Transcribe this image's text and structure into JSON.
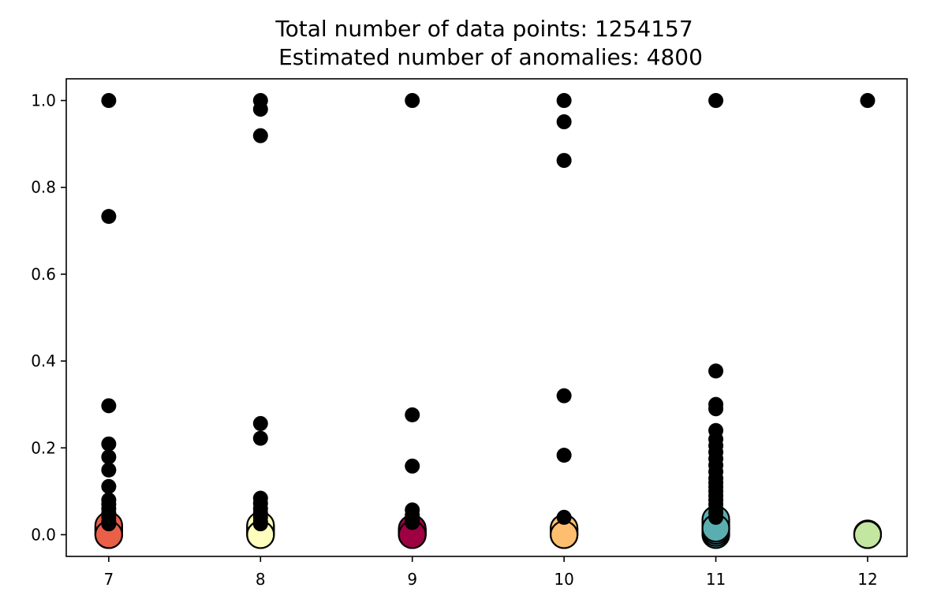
{
  "chart_data": {
    "type": "scatter",
    "title_line1": "Total number of data points: 1254157",
    "title_line2": "Estimated number of anomalies: 4800",
    "xlabel": "",
    "ylabel": "",
    "xlim": [
      6.72,
      12.26
    ],
    "ylim": [
      -0.05,
      1.05
    ],
    "grid": false,
    "x_ticks": [
      7,
      8,
      9,
      10,
      11,
      12
    ],
    "x_tick_labels": [
      "7",
      "8",
      "9",
      "10",
      "11",
      "12"
    ],
    "y_ticks": [
      0.0,
      0.2,
      0.4,
      0.6,
      0.8,
      1.0
    ],
    "y_tick_labels": [
      "0.0",
      "0.2",
      "0.4",
      "0.6",
      "0.8",
      "1.0"
    ],
    "clusters": [
      {
        "x": 7,
        "color": "#e95f47",
        "center_y": 0.0,
        "core_y": [
          0.0,
          0.003,
          0.006,
          0.009,
          0.012,
          0.015,
          0.018,
          0.021
        ]
      },
      {
        "x": 8,
        "color": "#fefebd",
        "center_y": 0.0,
        "core_y": [
          0.0,
          0.003,
          0.006,
          0.009,
          0.012,
          0.015,
          0.018,
          0.021
        ]
      },
      {
        "x": 9,
        "color": "#9e0142",
        "center_y": 0.0,
        "core_y": [
          0.0,
          0.002,
          0.004,
          0.006,
          0.008,
          0.01,
          0.012,
          0.014
        ]
      },
      {
        "x": 10,
        "color": "#fdbf6f",
        "center_y": 0.0,
        "core_y": [
          0.0,
          0.003,
          0.006,
          0.009,
          0.012,
          0.015
        ]
      },
      {
        "x": 11,
        "color": "#5aaeb0",
        "center_y": 0.015,
        "core_y": [
          0.0,
          0.005,
          0.01,
          0.015,
          0.02,
          0.025,
          0.03,
          0.035
        ]
      },
      {
        "x": 12,
        "color": "#c3e6a0",
        "center_y": 0.0,
        "core_y": [
          0.0,
          0.002
        ]
      }
    ],
    "anomalies": [
      {
        "x": 7,
        "y": [
          1.0,
          0.733,
          0.297,
          0.209,
          0.179,
          0.149,
          0.111,
          0.08,
          0.07,
          0.06,
          0.05,
          0.04,
          0.03,
          0.025
        ]
      },
      {
        "x": 8,
        "y": [
          1.0,
          0.98,
          0.919,
          0.256,
          0.222,
          0.084,
          0.072,
          0.06,
          0.05,
          0.04,
          0.03,
          0.025
        ]
      },
      {
        "x": 9,
        "y": [
          1.0,
          0.276,
          0.158,
          0.057,
          0.045,
          0.035,
          0.028
        ]
      },
      {
        "x": 10,
        "y": [
          1.0,
          0.951,
          0.862,
          0.32,
          0.183,
          0.04
        ]
      },
      {
        "x": 11,
        "y": [
          1.0,
          0.377,
          0.3,
          0.29,
          0.24,
          0.22,
          0.205,
          0.19,
          0.175,
          0.16,
          0.145,
          0.13,
          0.12,
          0.11,
          0.1,
          0.09,
          0.08,
          0.07,
          0.06,
          0.05,
          0.04
        ]
      },
      {
        "x": 12,
        "y": [
          1.0
        ]
      }
    ]
  }
}
